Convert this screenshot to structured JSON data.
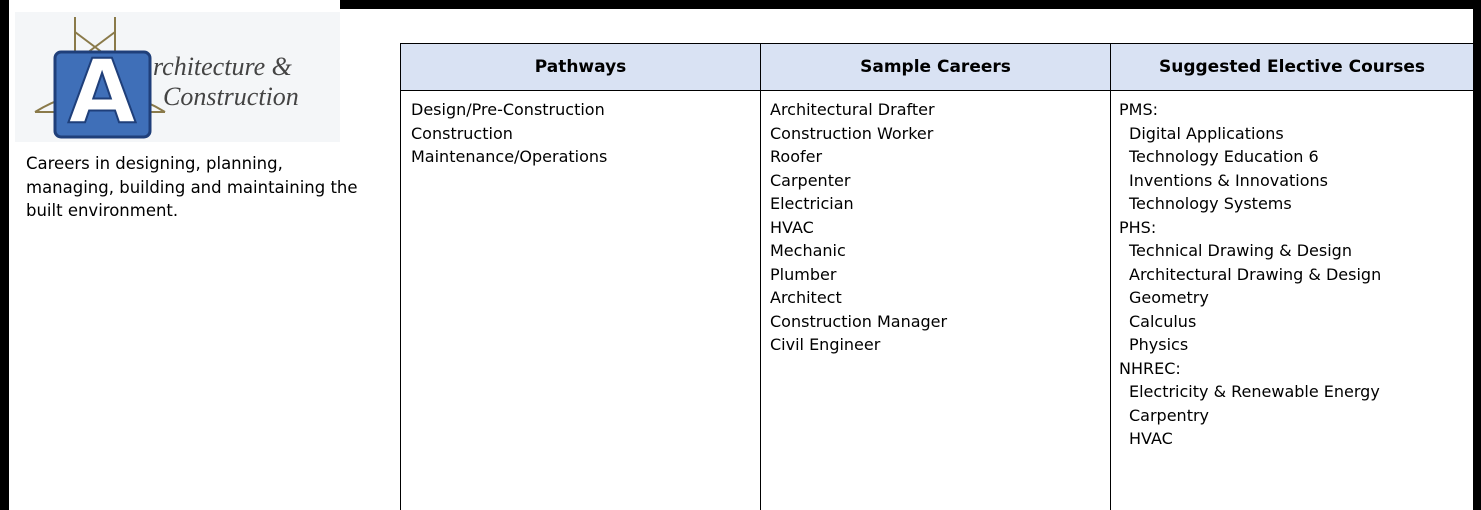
{
  "logo": {
    "letter": "A",
    "line1": "rchitecture &",
    "line2": "Construction"
  },
  "description": "Careers in designing, planning, managing, building and maintaining the built environment.",
  "table": {
    "headers": [
      "Pathways",
      "Sample Careers",
      "Suggested Elective Courses"
    ],
    "pathways": [
      "Design/Pre-Construction",
      "Construction",
      "Maintenance/Operations"
    ],
    "careers": [
      "Architectural Drafter",
      "Construction Worker",
      "Roofer",
      "Carpenter",
      "Electrician",
      "HVAC",
      "Mechanic",
      "Plumber",
      "Architect",
      "Construction Manager",
      "Civil Engineer"
    ],
    "courses": [
      {
        "school": "PMS:",
        "items": [
          "Digital Applications",
          "Technology Education 6",
          "Inventions & Innovations",
          "Technology Systems"
        ]
      },
      {
        "school": "PHS:",
        "items": [
          "Technical Drawing & Design",
          "Architectural Drawing & Design",
          "Geometry",
          "Calculus",
          "Physics"
        ]
      },
      {
        "school": "NHREC:",
        "items": [
          "Electricity & Renewable Energy",
          "Carpentry",
          "HVAC"
        ]
      }
    ]
  }
}
